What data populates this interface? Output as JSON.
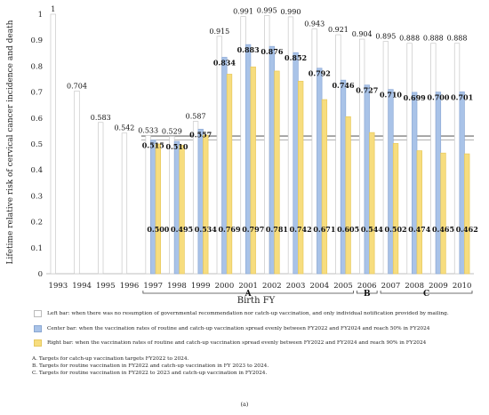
{
  "chart_data": {
    "type": "bar",
    "ylabel": "Lifetime relative risk of cervical cancer incidence and death",
    "xlabel": "Birth FY",
    "ylim": [
      0,
      1
    ],
    "yticks": [
      "0",
      "0.1",
      "0.2",
      "0.3",
      "0.4",
      "0.5",
      "0.6",
      "0.7",
      "0.8",
      "0.9",
      "1"
    ],
    "grid": false,
    "categories": [
      "1993",
      "1994",
      "1995",
      "1996",
      "1997",
      "1998",
      "1999",
      "2000",
      "2001",
      "2002",
      "2003",
      "2004",
      "2005",
      "2006",
      "2007",
      "2008",
      "2009",
      "2010"
    ],
    "series": [
      {
        "key": "left",
        "color": "#ffffff",
        "values": [
          1,
          0.704,
          0.583,
          0.542,
          0.533,
          0.529,
          0.587,
          0.915,
          0.991,
          0.995,
          0.99,
          0.943,
          0.921,
          0.904,
          0.895,
          0.888,
          0.888,
          0.888
        ],
        "labels": [
          "1",
          "0.704",
          "0.583",
          "0.542",
          "0.533",
          "0.529",
          "0.587",
          "0.915",
          "0.991",
          "0.995",
          "0.990",
          "0.943",
          "0.921",
          "0.904",
          "0.895",
          "0.888",
          "0.888",
          "0.888"
        ]
      },
      {
        "key": "center",
        "color": "#a9c3e8",
        "values": [
          null,
          null,
          null,
          null,
          0.515,
          0.51,
          0.557,
          0.834,
          0.883,
          0.876,
          0.852,
          0.792,
          0.746,
          0.727,
          0.71,
          0.699,
          0.7,
          0.701
        ],
        "labels": [
          "",
          "",
          "",
          "",
          "0.515",
          "0.510",
          "0.557",
          "0.834",
          "0.883",
          "0.876",
          "0.852",
          "0.792",
          "0.746",
          "0.727",
          "0.710",
          "0.699",
          "0.700",
          "0.701"
        ]
      },
      {
        "key": "right",
        "color": "#f7dd7e",
        "values": [
          null,
          null,
          null,
          null,
          0.5,
          0.495,
          0.534,
          0.769,
          0.797,
          0.781,
          0.742,
          0.671,
          0.605,
          0.544,
          0.502,
          0.474,
          0.465,
          0.462
        ],
        "labels": [
          "",
          "",
          "",
          "",
          "0.500",
          "0.495",
          "0.534",
          "0.769",
          "0.797",
          "0.781",
          "0.742",
          "0.671",
          "0.605",
          "0.544",
          "0.502",
          "0.474",
          "0.465",
          "0.462"
        ]
      }
    ],
    "reference_lines": [
      0.515,
      0.529,
      0.533
    ],
    "groups": [
      {
        "label": "A",
        "from": "1997",
        "to": "2005"
      },
      {
        "label": "B",
        "from": "2006",
        "to": "2006"
      },
      {
        "label": "C",
        "from": "2007",
        "to": "2010"
      }
    ]
  },
  "legend": {
    "left": "Left bar: when there was no resumption of governmental recommendation nor catch-up vaccination, and only individual notification provided by mailing.",
    "center": "Center bar: when the vaccination rates of routine and catch-up vaccination spread evenly between FY2022 and FY2024 and reach 50% in FY2024",
    "right": "Right bar: when the vaccination rates of routine and catch-up vaccination spread evenly between FY2022 and FY2024 and reach 90% in FY2024"
  },
  "notes": [
    "A.  Targets for catch-up vaccination targets FY2022 to 2024.",
    "B.  Targets for routine vaccination in FY2022 and catch-up vaccination in FY 2023 to 2024.",
    "C.  Targets for routine vaccination in FY2022 to 2023 and catch-up vaccination in FY2024."
  ],
  "caption": "(a)"
}
